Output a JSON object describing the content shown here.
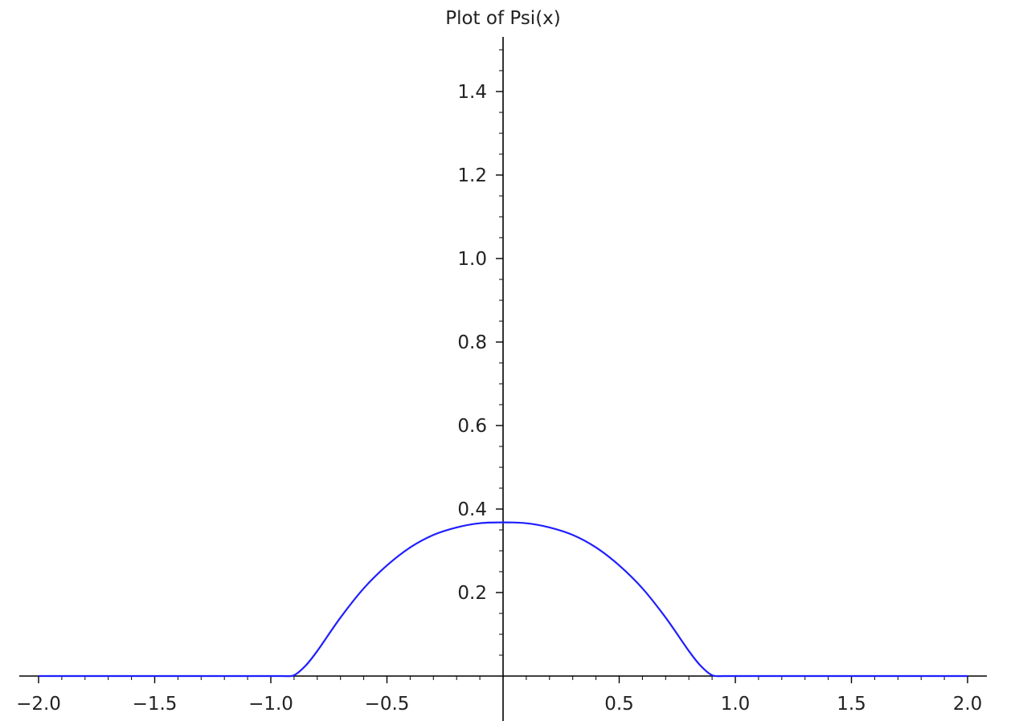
{
  "chart_data": {
    "type": "line",
    "title": "Plot of Psi(x)",
    "xlabel": "",
    "ylabel": "",
    "xlim": [
      -2.0,
      2.0
    ],
    "ylim": [
      0.0,
      1.5
    ],
    "grid": false,
    "x_ticks": [
      -2.0,
      -1.5,
      -1.0,
      -0.5,
      0.5,
      1.0,
      1.5,
      2.0
    ],
    "x_tick_labels": [
      "−2.0",
      "−1.5",
      "−1.0",
      "−0.5",
      "0.5",
      "1.0",
      "1.5",
      "2.0"
    ],
    "y_ticks": [
      0.2,
      0.4,
      0.6,
      0.8,
      1.0,
      1.2,
      1.4
    ],
    "y_tick_labels": [
      "0.2",
      "0.4",
      "0.6",
      "0.8",
      "1.0",
      "1.2",
      "1.4"
    ],
    "series": [
      {
        "color": "#1f1fff",
        "x": [
          -2.0,
          -1.5,
          -1.0,
          -0.95,
          -0.9,
          -0.85,
          -0.8,
          -0.7,
          -0.6,
          -0.5,
          -0.4,
          -0.3,
          -0.2,
          -0.1,
          0.0,
          0.1,
          0.2,
          0.3,
          0.4,
          0.5,
          0.6,
          0.7,
          0.8,
          0.85,
          0.9,
          0.95,
          1.0,
          1.5,
          2.0
        ],
        "y": [
          0.0,
          0.0,
          0.0,
          0.0,
          0.002,
          0.025,
          0.06,
          0.14,
          0.21,
          0.265,
          0.308,
          0.338,
          0.356,
          0.366,
          0.368,
          0.366,
          0.356,
          0.338,
          0.308,
          0.265,
          0.21,
          0.14,
          0.06,
          0.025,
          0.002,
          0.0,
          0.0,
          0.0,
          0.0
        ]
      }
    ]
  }
}
